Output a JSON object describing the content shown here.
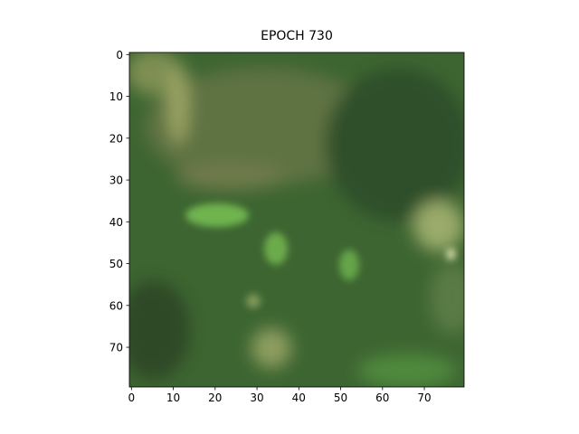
{
  "chart_data": {
    "type": "image",
    "title": "EPOCH 730",
    "xlim": [
      -0.5,
      79.5
    ],
    "ylim": [
      79.5,
      -0.5
    ],
    "xticks": [
      0,
      10,
      20,
      30,
      40,
      50,
      60,
      70
    ],
    "yticks": [
      0,
      10,
      20,
      30,
      40,
      50,
      60,
      70
    ]
  }
}
